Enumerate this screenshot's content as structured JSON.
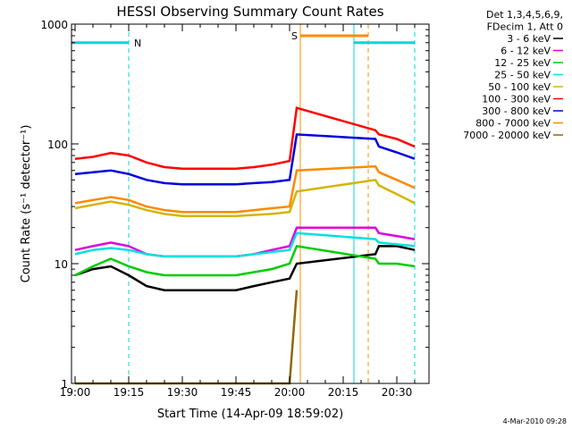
{
  "chart_data": {
    "type": "line",
    "title": "HESSI Observing Summary Count Rates",
    "xlabel": "Start Time (14-Apr-09 18:59:02)",
    "ylabel": "Count Rate (s⁻¹ detector⁻¹)",
    "y_scale": "log",
    "ylim": [
      1,
      1000
    ],
    "x_range_minutes": [
      "18:59",
      "20:39"
    ],
    "x_ticks": [
      "19:00",
      "19:15",
      "19:30",
      "19:45",
      "20:00",
      "20:15",
      "20:30"
    ],
    "y_ticks": [
      "1",
      "10",
      "100",
      "1000"
    ],
    "legend": {
      "placement": "right",
      "header": [
        "Det 1,3,4,5,6,9,",
        "FDecim 1, Att 0"
      ]
    },
    "footer": "4-Mar-2010 09:28",
    "flags": [
      {
        "label": "N",
        "color": "#00d8d8",
        "y": 700,
        "segments": [
          [
            "18:59",
            "19:15"
          ],
          [
            "20:18",
            "20:35"
          ]
        ]
      },
      {
        "label": "S",
        "color": "#ff8c00",
        "y": 800,
        "segments": [
          [
            "20:03",
            "20:22"
          ]
        ]
      }
    ],
    "vlines": [
      {
        "time": "19:15",
        "color": "#00d8d8",
        "style": "dashed"
      },
      {
        "time": "20:35",
        "color": "#00d8d8",
        "style": "dashed"
      },
      {
        "time": "20:22",
        "color": "#ff8c00",
        "style": "dashed"
      },
      {
        "time": "20:03",
        "color": "#ff8c00",
        "style": "solid"
      },
      {
        "time": "20:18",
        "color": "#00d8d8",
        "style": "solid"
      }
    ],
    "series": [
      {
        "name": "3 - 6 keV",
        "color": "#000000",
        "x": [
          "19:00",
          "19:05",
          "19:10",
          "19:15",
          "19:20",
          "19:25",
          "19:30",
          "19:35",
          "19:40",
          "19:45",
          "19:50",
          "19:55",
          "20:00",
          "20:02",
          "20:24",
          "20:25",
          "20:30",
          "20:35"
        ],
        "y": [
          8,
          9,
          9.5,
          8,
          6.5,
          6,
          6,
          6,
          6,
          6,
          6.5,
          7,
          7.5,
          10,
          12,
          14,
          14,
          13
        ]
      },
      {
        "name": "6 - 12 keV",
        "color": "#dd00dd",
        "x": [
          "19:00",
          "19:05",
          "19:10",
          "19:15",
          "19:20",
          "19:25",
          "19:30",
          "19:35",
          "19:40",
          "19:45",
          "19:50",
          "19:55",
          "20:00",
          "20:02",
          "20:24",
          "20:25",
          "20:30",
          "20:35"
        ],
        "y": [
          13,
          14,
          15,
          14,
          12,
          11.5,
          11.5,
          11.5,
          11.5,
          11.5,
          12,
          13,
          14,
          20,
          20,
          18,
          17,
          16
        ]
      },
      {
        "name": "12 - 25 keV",
        "color": "#00cc00",
        "x": [
          "19:00",
          "19:05",
          "19:10",
          "19:15",
          "19:20",
          "19:25",
          "19:30",
          "19:35",
          "19:40",
          "19:45",
          "19:50",
          "19:55",
          "20:00",
          "20:02",
          "20:24",
          "20:25",
          "20:30",
          "20:35"
        ],
        "y": [
          8,
          9.5,
          11,
          9.5,
          8.5,
          8,
          8,
          8,
          8,
          8,
          8.5,
          9,
          10,
          14,
          11,
          10,
          10,
          9.5
        ]
      },
      {
        "name": "25 - 50 keV",
        "color": "#00e0e0",
        "x": [
          "19:00",
          "19:05",
          "19:10",
          "19:15",
          "19:20",
          "19:25",
          "19:30",
          "19:35",
          "19:40",
          "19:45",
          "19:50",
          "19:55",
          "20:00",
          "20:02",
          "20:24",
          "20:25",
          "20:30",
          "20:35"
        ],
        "y": [
          12,
          13,
          13.5,
          13,
          12,
          11.5,
          11.5,
          11.5,
          11.5,
          11.5,
          12,
          12.5,
          13,
          18,
          16,
          15,
          14.5,
          14
        ]
      },
      {
        "name": "50 - 100 keV",
        "color": "#d4b400",
        "x": [
          "19:00",
          "19:05",
          "19:10",
          "19:15",
          "19:20",
          "19:25",
          "19:30",
          "19:35",
          "19:40",
          "19:45",
          "19:50",
          "19:55",
          "20:00",
          "20:02",
          "20:24",
          "20:25",
          "20:30",
          "20:35"
        ],
        "y": [
          29,
          31,
          33,
          31,
          28,
          26,
          25,
          25,
          25,
          25,
          25.5,
          26,
          27,
          40,
          50,
          45,
          38,
          32
        ]
      },
      {
        "name": "100 - 300 keV",
        "color": "#ff0000",
        "x": [
          "19:00",
          "19:05",
          "19:10",
          "19:15",
          "19:20",
          "19:25",
          "19:30",
          "19:35",
          "19:40",
          "19:45",
          "19:50",
          "19:55",
          "20:00",
          "20:02",
          "20:24",
          "20:25",
          "20:30",
          "20:35"
        ],
        "y": [
          75,
          78,
          84,
          80,
          70,
          64,
          62,
          62,
          62,
          62,
          64,
          67,
          72,
          200,
          130,
          120,
          110,
          95
        ]
      },
      {
        "name": "300 - 800 keV",
        "color": "#0000dd",
        "x": [
          "19:00",
          "19:05",
          "19:10",
          "19:15",
          "19:20",
          "19:25",
          "19:30",
          "19:35",
          "19:40",
          "19:45",
          "19:50",
          "19:55",
          "20:00",
          "20:02",
          "20:24",
          "20:25",
          "20:30",
          "20:35"
        ],
        "y": [
          56,
          58,
          60,
          56,
          50,
          47,
          46,
          46,
          46,
          46,
          47,
          48,
          50,
          120,
          110,
          95,
          85,
          75
        ]
      },
      {
        "name": "800 - 7000 keV",
        "color": "#ff8800",
        "x": [
          "19:00",
          "19:05",
          "19:10",
          "19:15",
          "19:20",
          "19:25",
          "19:30",
          "19:35",
          "19:40",
          "19:45",
          "19:50",
          "19:55",
          "20:00",
          "20:02",
          "20:24",
          "20:25",
          "20:30",
          "20:35"
        ],
        "y": [
          32,
          34,
          36,
          34,
          30,
          28,
          27,
          27,
          27,
          27,
          28,
          29,
          30,
          60,
          65,
          58,
          50,
          43
        ]
      },
      {
        "name": "7000 - 20000 keV",
        "color": "#8b6a00",
        "x": [
          "19:00",
          "19:05",
          "19:10",
          "19:15",
          "19:20",
          "19:25",
          "19:30",
          "19:35",
          "19:40",
          "19:45",
          "19:50",
          "19:55",
          "20:00",
          "20:02"
        ],
        "y": [
          1,
          1,
          1,
          1,
          1,
          1,
          1,
          1,
          1,
          1,
          1,
          1,
          1,
          6
        ]
      }
    ]
  }
}
